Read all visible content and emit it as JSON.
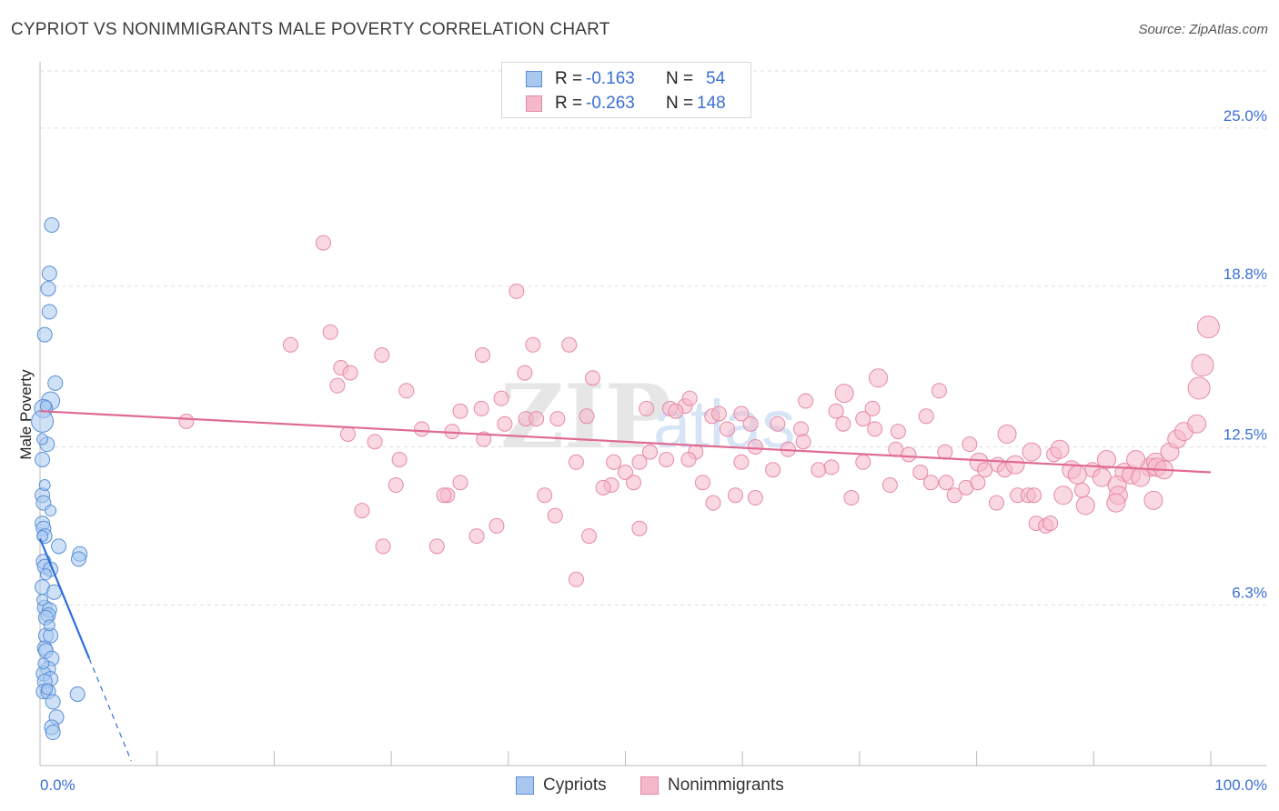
{
  "title": "CYPRIOT VS NONIMMIGRANTS MALE POVERTY CORRELATION CHART",
  "source": "Source: ZipAtlas.com",
  "watermark": {
    "zip": "ZIP",
    "atlas": "atlas"
  },
  "legend": {
    "rows": [
      {
        "r_label": "R =",
        "r_value": "-0.163",
        "n_label": "N =",
        "n_value": "54"
      },
      {
        "r_label": "R =",
        "r_value": "-0.263",
        "n_label": "N =",
        "n_value": "148"
      }
    ]
  },
  "bottom_legend": {
    "cypriots": "Cypriots",
    "nonimmigrants": "Nonimmigrants"
  },
  "colors": {
    "blue_fill": "#a8c8f0",
    "blue_stroke": "#5b8fd6",
    "blue_line": "#2f6fd8",
    "pink_fill": "#f5b8cb",
    "pink_stroke": "#e58aa6",
    "pink_line": "#e06b92",
    "tick_label": "#3a6fd6",
    "grid": "#dddddd"
  },
  "chart_data": {
    "type": "scatter",
    "title": "CYPRIOT VS NONIMMIGRANTS MALE POVERTY CORRELATION CHART",
    "xlabel": "",
    "ylabel": "Male Poverty",
    "xlim": [
      0,
      100
    ],
    "ylim": [
      0,
      27.6
    ],
    "x_tick_labels": [
      {
        "value": 0,
        "label": "0.0%"
      },
      {
        "value": 100,
        "label": "100.0%"
      }
    ],
    "y_tick_labels": [
      {
        "value": 6.3,
        "label": "6.3%"
      },
      {
        "value": 12.5,
        "label": "12.5%"
      },
      {
        "value": 18.8,
        "label": "18.8%"
      },
      {
        "value": 25.0,
        "label": "25.0%"
      }
    ],
    "grid": true,
    "series": [
      {
        "name": "Cypriots",
        "r": -0.163,
        "n": 54,
        "trend": {
          "x0": 0,
          "y0": 8.9,
          "x1": 4.2,
          "y1": 4.2,
          "x_dash_end": 7.8
        },
        "points": [
          [
            1.0,
            21.2,
            9
          ],
          [
            0.8,
            19.3,
            9
          ],
          [
            0.7,
            18.7,
            9
          ],
          [
            0.8,
            17.8,
            9
          ],
          [
            0.4,
            16.9,
            9
          ],
          [
            1.3,
            15.0,
            9
          ],
          [
            0.9,
            14.3,
            11
          ],
          [
            0.3,
            14.0,
            11
          ],
          [
            0.2,
            13.5,
            13
          ],
          [
            0.6,
            12.6,
            9
          ],
          [
            0.2,
            12.0,
            9
          ],
          [
            0.2,
            10.6,
            9
          ],
          [
            0.3,
            10.3,
            9
          ],
          [
            0.2,
            9.5,
            9
          ],
          [
            0.3,
            9.3,
            9
          ],
          [
            0.4,
            9.0,
            9
          ],
          [
            1.6,
            8.6,
            9
          ],
          [
            3.4,
            8.3,
            9
          ],
          [
            3.3,
            8.1,
            9
          ],
          [
            0.3,
            8.0,
            9
          ],
          [
            0.4,
            7.8,
            9
          ],
          [
            0.9,
            7.7,
            9
          ],
          [
            0.2,
            7.0,
            9
          ],
          [
            1.2,
            6.8,
            9
          ],
          [
            0.4,
            6.2,
            9
          ],
          [
            0.8,
            6.1,
            9
          ],
          [
            0.7,
            5.9,
            9
          ],
          [
            0.5,
            5.8,
            9
          ],
          [
            0.5,
            5.1,
            9
          ],
          [
            0.9,
            5.1,
            9
          ],
          [
            0.4,
            4.6,
            9
          ],
          [
            0.5,
            4.5,
            9
          ],
          [
            1.0,
            4.2,
            9
          ],
          [
            0.7,
            3.8,
            9
          ],
          [
            0.3,
            3.6,
            9
          ],
          [
            0.9,
            3.4,
            9
          ],
          [
            0.4,
            3.3,
            9
          ],
          [
            0.3,
            2.9,
            9
          ],
          [
            0.7,
            2.9,
            9
          ],
          [
            3.2,
            2.8,
            9
          ],
          [
            1.1,
            2.5,
            9
          ],
          [
            1.4,
            1.9,
            9
          ],
          [
            1.0,
            1.5,
            9
          ],
          [
            1.1,
            1.3,
            9
          ],
          [
            0.2,
            9.0,
            7
          ],
          [
            0.5,
            7.5,
            7
          ],
          [
            0.8,
            5.5,
            7
          ],
          [
            0.3,
            4.0,
            7
          ],
          [
            0.6,
            3.0,
            7
          ],
          [
            0.4,
            11.0,
            7
          ],
          [
            0.2,
            12.8,
            7
          ],
          [
            0.5,
            14.1,
            7
          ],
          [
            0.2,
            6.5,
            7
          ],
          [
            0.9,
            10.0,
            7
          ]
        ]
      },
      {
        "name": "Nonimmigrants",
        "r": -0.263,
        "n": 148,
        "trend": {
          "x0": 0,
          "y0": 13.9,
          "x1": 100,
          "y1": 11.5
        },
        "points": [
          [
            24.2,
            20.5,
            9
          ],
          [
            40.7,
            18.6,
            9
          ],
          [
            24.8,
            17.0,
            9
          ],
          [
            21.4,
            16.5,
            9
          ],
          [
            42.1,
            16.5,
            9
          ],
          [
            45.2,
            16.5,
            9
          ],
          [
            37.8,
            16.1,
            9
          ],
          [
            29.2,
            16.1,
            9
          ],
          [
            25.7,
            15.6,
            9
          ],
          [
            26.5,
            15.4,
            9
          ],
          [
            41.4,
            15.4,
            9
          ],
          [
            47.2,
            15.2,
            9
          ],
          [
            25.4,
            14.9,
            9
          ],
          [
            31.3,
            14.7,
            9
          ],
          [
            39.4,
            14.4,
            9
          ],
          [
            37.7,
            14.0,
            9
          ],
          [
            35.9,
            13.9,
            9
          ],
          [
            46.7,
            13.7,
            9
          ],
          [
            12.5,
            13.5,
            9
          ],
          [
            41.5,
            13.6,
            9
          ],
          [
            42.4,
            13.6,
            9
          ],
          [
            44.2,
            13.6,
            9
          ],
          [
            39.7,
            13.4,
            9
          ],
          [
            32.6,
            13.2,
            9
          ],
          [
            35.2,
            13.1,
            9
          ],
          [
            26.3,
            13.0,
            9
          ],
          [
            28.6,
            12.7,
            9
          ],
          [
            37.9,
            12.8,
            9
          ],
          [
            30.7,
            12.0,
            9
          ],
          [
            45.8,
            11.9,
            9
          ],
          [
            49.0,
            11.9,
            9
          ],
          [
            51.2,
            11.9,
            9
          ],
          [
            50.0,
            11.5,
            9
          ],
          [
            35.9,
            11.1,
            9
          ],
          [
            30.4,
            11.0,
            9
          ],
          [
            48.8,
            11.0,
            9
          ],
          [
            48.1,
            10.9,
            9
          ],
          [
            50.7,
            11.1,
            9
          ],
          [
            34.8,
            10.6,
            9
          ],
          [
            43.1,
            10.6,
            9
          ],
          [
            34.5,
            10.6,
            9
          ],
          [
            27.5,
            10.0,
            9
          ],
          [
            39.0,
            9.4,
            9
          ],
          [
            44.0,
            9.8,
            9
          ],
          [
            51.2,
            9.3,
            9
          ],
          [
            37.3,
            9.0,
            9
          ],
          [
            46.9,
            9.0,
            9
          ],
          [
            29.3,
            8.6,
            9
          ],
          [
            33.9,
            8.6,
            9
          ],
          [
            45.8,
            7.3,
            9
          ],
          [
            51.8,
            14.0,
            9
          ],
          [
            53.8,
            14.0,
            9
          ],
          [
            55.1,
            14.1,
            9
          ],
          [
            55.5,
            14.4,
            9
          ],
          [
            54.3,
            13.9,
            9
          ],
          [
            57.4,
            13.7,
            9
          ],
          [
            58.0,
            13.8,
            9
          ],
          [
            59.9,
            13.8,
            9
          ],
          [
            60.7,
            13.4,
            9
          ],
          [
            58.7,
            13.2,
            9
          ],
          [
            63.0,
            13.4,
            9
          ],
          [
            65.0,
            13.2,
            9
          ],
          [
            65.2,
            12.7,
            9
          ],
          [
            63.9,
            12.4,
            9
          ],
          [
            61.1,
            12.5,
            9
          ],
          [
            56.0,
            12.3,
            9
          ],
          [
            52.1,
            12.3,
            9
          ],
          [
            55.4,
            12.0,
            9
          ],
          [
            53.5,
            12.0,
            9
          ],
          [
            59.9,
            11.9,
            9
          ],
          [
            62.6,
            11.6,
            9
          ],
          [
            66.5,
            11.6,
            9
          ],
          [
            67.6,
            11.7,
            9
          ],
          [
            70.3,
            11.9,
            9
          ],
          [
            68.6,
            13.4,
            9
          ],
          [
            70.3,
            13.6,
            9
          ],
          [
            71.3,
            13.2,
            9
          ],
          [
            73.3,
            13.1,
            9
          ],
          [
            75.7,
            13.7,
            9
          ],
          [
            76.8,
            14.7,
            9
          ],
          [
            71.1,
            14.0,
            9
          ],
          [
            65.4,
            14.3,
            9
          ],
          [
            68.0,
            13.9,
            9
          ],
          [
            68.7,
            14.6,
            11
          ],
          [
            71.6,
            15.2,
            11
          ],
          [
            73.1,
            12.4,
            9
          ],
          [
            74.2,
            12.2,
            9
          ],
          [
            72.6,
            11.0,
            9
          ],
          [
            75.2,
            11.5,
            9
          ],
          [
            76.1,
            11.1,
            9
          ],
          [
            77.4,
            11.1,
            9
          ],
          [
            78.1,
            10.6,
            9
          ],
          [
            79.1,
            10.9,
            9
          ],
          [
            80.1,
            11.1,
            9
          ],
          [
            81.7,
            10.3,
            9
          ],
          [
            77.3,
            12.3,
            9
          ],
          [
            79.4,
            12.6,
            9
          ],
          [
            80.2,
            11.9,
            11
          ],
          [
            81.8,
            11.8,
            9
          ],
          [
            82.4,
            11.6,
            9
          ],
          [
            80.7,
            11.6,
            9
          ],
          [
            83.5,
            10.6,
            9
          ],
          [
            84.4,
            10.6,
            9
          ],
          [
            85.1,
            9.5,
            9
          ],
          [
            85.9,
            9.4,
            9
          ],
          [
            86.3,
            9.5,
            9
          ],
          [
            84.7,
            12.3,
            11
          ],
          [
            86.6,
            12.2,
            9
          ],
          [
            87.1,
            12.4,
            11
          ],
          [
            88.1,
            11.6,
            11
          ],
          [
            89.9,
            11.6,
            9
          ],
          [
            91.1,
            12.0,
            11
          ],
          [
            92.6,
            11.5,
            11
          ],
          [
            90.7,
            11.3,
            11
          ],
          [
            89.0,
            10.8,
            9
          ],
          [
            92.0,
            11.0,
            11
          ],
          [
            93.2,
            11.4,
            11
          ],
          [
            94.8,
            11.7,
            11
          ],
          [
            95.3,
            11.9,
            11
          ],
          [
            96.5,
            12.3,
            11
          ],
          [
            97.1,
            12.8,
            11
          ],
          [
            97.7,
            13.1,
            11
          ],
          [
            98.8,
            13.4,
            11
          ],
          [
            99.0,
            14.8,
            13
          ],
          [
            99.3,
            15.7,
            13
          ],
          [
            99.8,
            17.2,
            13
          ],
          [
            95.4,
            11.7,
            11
          ],
          [
            92.1,
            10.6,
            11
          ],
          [
            89.3,
            10.2,
            11
          ],
          [
            91.9,
            10.3,
            11
          ],
          [
            96.0,
            11.6,
            11
          ],
          [
            94.0,
            11.3,
            11
          ],
          [
            95.1,
            10.4,
            11
          ],
          [
            87.4,
            10.6,
            11
          ],
          [
            93.6,
            12.0,
            11
          ],
          [
            88.6,
            11.4,
            11
          ],
          [
            83.3,
            11.8,
            11
          ],
          [
            84.9,
            10.6,
            9
          ],
          [
            82.6,
            13.0,
            11
          ],
          [
            69.3,
            10.5,
            9
          ],
          [
            61.1,
            10.5,
            9
          ],
          [
            59.4,
            10.6,
            9
          ],
          [
            57.5,
            10.3,
            9
          ],
          [
            56.6,
            11.1,
            9
          ]
        ]
      }
    ]
  }
}
